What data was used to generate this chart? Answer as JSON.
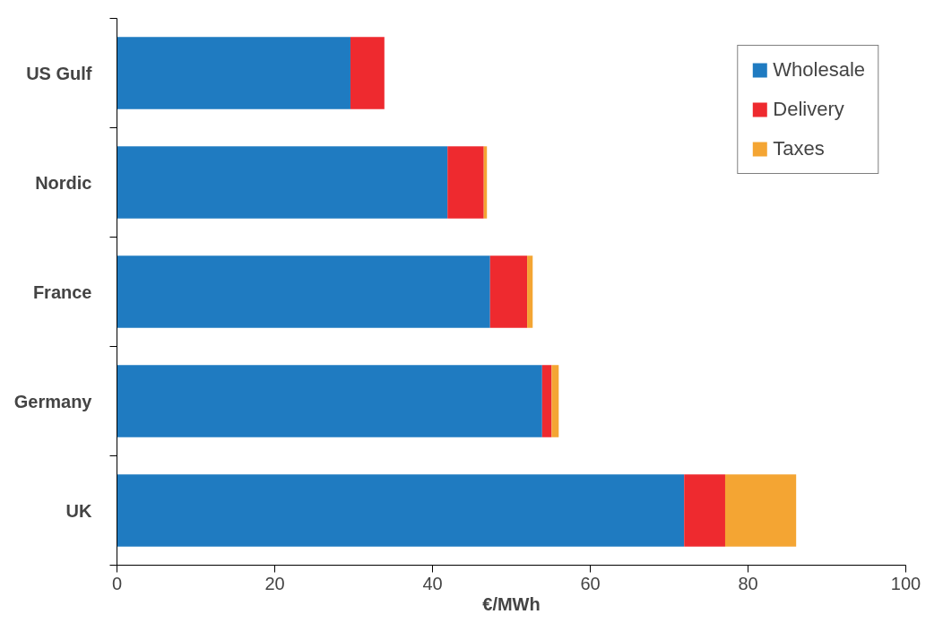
{
  "chart_data": {
    "type": "bar",
    "orientation": "horizontal",
    "stacked": true,
    "xlabel": "€/MWh",
    "categories": [
      "US Gulf",
      "Nordic",
      "France",
      "Germany",
      "UK"
    ],
    "series": [
      {
        "name": "Wholesale",
        "color": "#1f7bc1",
        "values": [
          29.6,
          41.9,
          47.3,
          53.9,
          71.9
        ]
      },
      {
        "name": "Delivery",
        "color": "#ee2a2f",
        "values": [
          4.3,
          4.6,
          4.7,
          1.2,
          5.2
        ]
      },
      {
        "name": "Taxes",
        "color": "#f4a533",
        "values": [
          0,
          0.4,
          0.7,
          0.9,
          9.0
        ]
      }
    ],
    "xlim": [
      0,
      100
    ],
    "xticks": [
      0,
      20,
      40,
      60,
      80,
      100
    ],
    "grid": false,
    "legend": "top right"
  }
}
